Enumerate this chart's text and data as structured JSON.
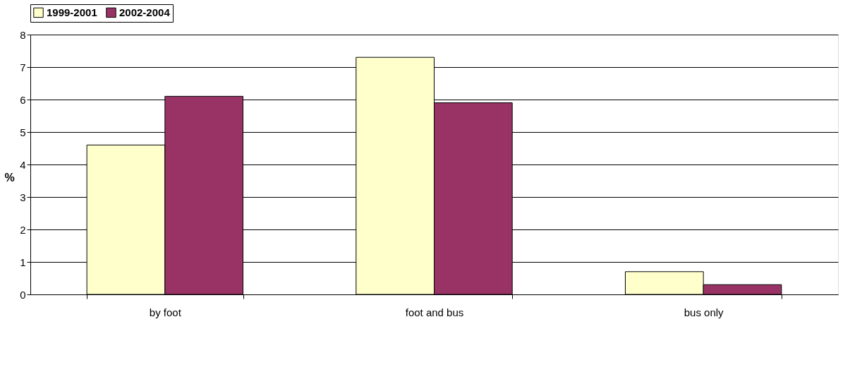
{
  "chart_data": {
    "type": "bar",
    "ylabel": "%",
    "categories": [
      "by foot",
      "foot and bus",
      "bus only"
    ],
    "series": [
      {
        "name": "1999-2001",
        "color": "#ffffcc",
        "values": [
          4.6,
          7.3,
          0.7
        ]
      },
      {
        "name": "2002-2004",
        "color": "#993366",
        "values": [
          6.1,
          5.9,
          0.3
        ]
      }
    ],
    "ylim": [
      0,
      8
    ],
    "yticks": [
      0,
      1,
      2,
      3,
      4,
      5,
      6,
      7,
      8
    ],
    "grid": "y",
    "legend": "top"
  }
}
